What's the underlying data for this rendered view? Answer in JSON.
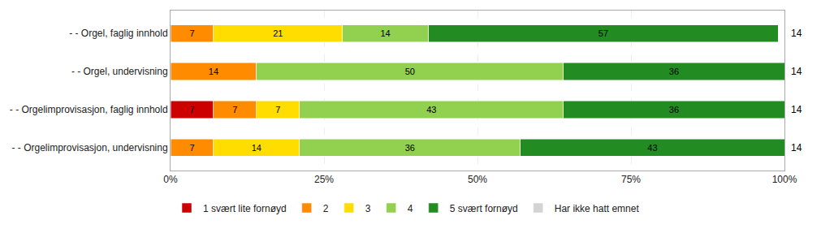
{
  "chart_data": {
    "type": "bar",
    "orientation": "horizontal",
    "stacked": true,
    "data_labels": true,
    "categories": [
      "- - Orgelimprovisasjon, undervisning",
      "- - Orgelimprovisasjon, faglig innhold",
      "- - Orgel, undervisning",
      "- - Orgel, faglig innhold"
    ],
    "series": [
      {
        "name": "1 svært lite fornøyd",
        "color": "#cc0000",
        "values": [
          0,
          7,
          0,
          0
        ]
      },
      {
        "name": "2",
        "color": "#ff8c00",
        "values": [
          7,
          7,
          14,
          7
        ]
      },
      {
        "name": "3",
        "color": "#ffdd00",
        "values": [
          14,
          7,
          0,
          21
        ]
      },
      {
        "name": "4",
        "color": "#92d050",
        "values": [
          36,
          43,
          50,
          14
        ]
      },
      {
        "name": "5 svært fornøyd",
        "color": "#228b22",
        "values": [
          43,
          36,
          36,
          57
        ]
      },
      {
        "name": "Har ikke hatt emnet",
        "color": "#d3d3d3",
        "values": [
          0,
          0,
          0,
          0
        ]
      }
    ],
    "xlim": [
      0,
      100
    ],
    "xticks": [
      {
        "value": 0,
        "label": "0%"
      },
      {
        "value": 25,
        "label": "25%"
      },
      {
        "value": 50,
        "label": "50%"
      },
      {
        "value": 75,
        "label": "75%"
      },
      {
        "value": 100,
        "label": "100%"
      }
    ],
    "grid": true,
    "legend": "bottom left",
    "annotations": [
      {
        "category": "- - Orgelimprovisasjon, undervisning",
        "text": "14"
      },
      {
        "category": "- - Orgelimprovisasjon, faglig innhold",
        "text": "14"
      },
      {
        "category": "- - Orgel, undervisning",
        "text": "14"
      },
      {
        "category": "- - Orgel, faglig innhold",
        "text": "14"
      }
    ]
  }
}
